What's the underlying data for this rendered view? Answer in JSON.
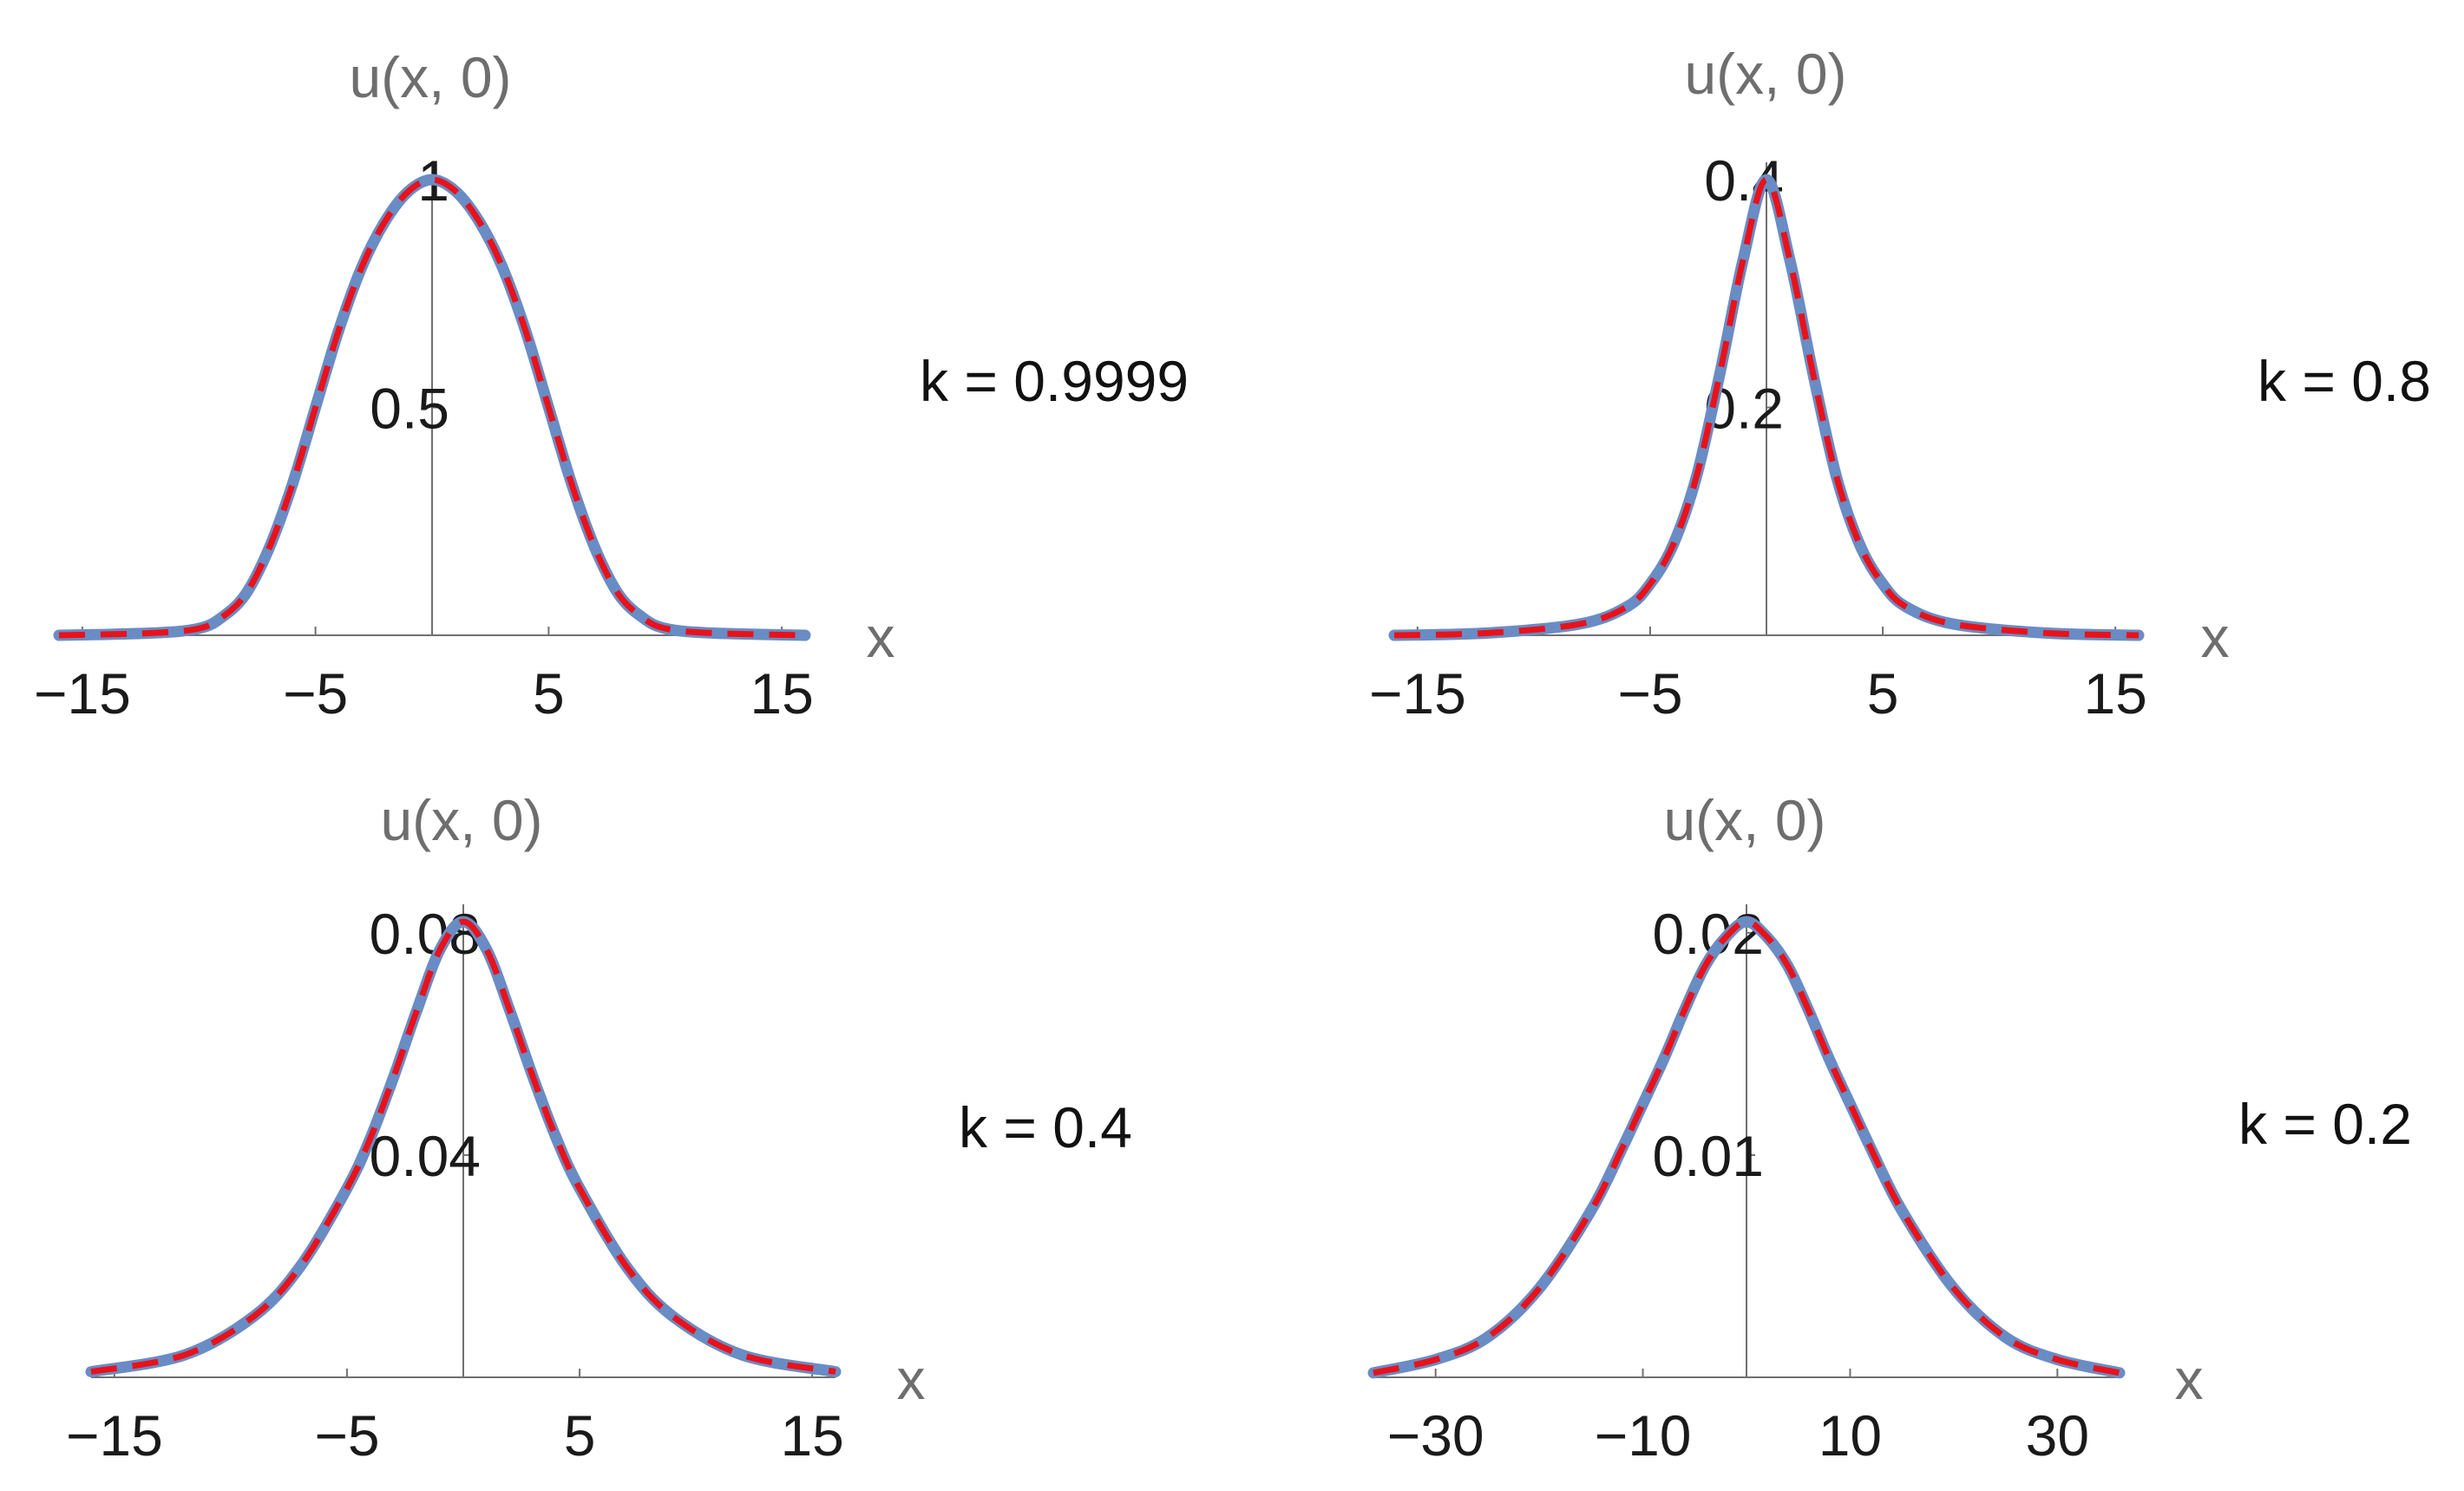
{
  "colors": {
    "solid_curve": "#6a8cc4",
    "dashed_curve": "#e8121b",
    "axis": "#707070",
    "axis_title": "#6e6e6e",
    "text": "#1a1a1a"
  },
  "chart_data": [
    {
      "type": "line",
      "ylabel": "u(x, 0)",
      "xlabel": "x",
      "annotation": "k = 0.9999",
      "xlim": [
        -16,
        16
      ],
      "ylim": [
        0,
        1
      ],
      "xticks": [
        -15,
        -5,
        5,
        15
      ],
      "xtick_labels": [
        "−15",
        "−5",
        "5",
        "15"
      ],
      "yticks": [
        0.5,
        1
      ],
      "ytick_labels": [
        "0.5",
        "1"
      ],
      "x": [
        -16,
        -12,
        -10,
        -9,
        -8,
        -7,
        -6,
        -5,
        -4,
        -3,
        -2,
        -1,
        0,
        1,
        2,
        3,
        4,
        5,
        6,
        7,
        8,
        9,
        10,
        12,
        16
      ],
      "y": [
        0.0,
        0.005,
        0.015,
        0.04,
        0.09,
        0.19,
        0.33,
        0.5,
        0.67,
        0.81,
        0.91,
        0.975,
        1.0,
        0.975,
        0.91,
        0.81,
        0.67,
        0.5,
        0.33,
        0.19,
        0.09,
        0.04,
        0.015,
        0.005,
        0.0
      ],
      "series": [
        {
          "style": "solid"
        },
        {
          "style": "dashed"
        }
      ]
    },
    {
      "type": "line",
      "ylabel": "u(x, 0)",
      "xlabel": "x",
      "annotation": "k = 0.8",
      "xlim": [
        -16,
        16
      ],
      "ylim": [
        0,
        0.4
      ],
      "xticks": [
        -15,
        -5,
        5,
        15
      ],
      "xtick_labels": [
        "−15",
        "−5",
        "5",
        "15"
      ],
      "yticks": [
        0.2,
        0.4
      ],
      "ytick_labels": [
        "0.2",
        "0.4"
      ],
      "x": [
        -16,
        -12,
        -8,
        -6,
        -5,
        -4,
        -3,
        -2,
        -1,
        0,
        1,
        2,
        3,
        4,
        5,
        6,
        8,
        12,
        16
      ],
      "y": [
        0.0,
        0.002,
        0.01,
        0.025,
        0.045,
        0.08,
        0.14,
        0.23,
        0.33,
        0.4,
        0.33,
        0.23,
        0.14,
        0.08,
        0.045,
        0.025,
        0.01,
        0.002,
        0.0
      ],
      "series": [
        {
          "style": "solid"
        },
        {
          "style": "dashed"
        }
      ]
    },
    {
      "type": "line",
      "ylabel": "u(x, 0)",
      "xlabel": "x",
      "annotation": "k = 0.4",
      "xlim": [
        -16,
        16
      ],
      "ylim": [
        0,
        0.082
      ],
      "xticks": [
        -15,
        -5,
        5,
        15
      ],
      "xtick_labels": [
        "−15",
        "−5",
        "5",
        "15"
      ],
      "yticks": [
        0.04,
        0.08
      ],
      "ytick_labels": [
        "0.04",
        "0.08"
      ],
      "x": [
        -16,
        -12,
        -9,
        -7,
        -5,
        -4,
        -3,
        -2,
        -1,
        0,
        1,
        2,
        3,
        4,
        5,
        7,
        9,
        12,
        16
      ],
      "y": [
        0.001,
        0.004,
        0.011,
        0.02,
        0.034,
        0.043,
        0.054,
        0.066,
        0.077,
        0.082,
        0.077,
        0.066,
        0.054,
        0.043,
        0.034,
        0.02,
        0.011,
        0.004,
        0.001
      ],
      "series": [
        {
          "style": "solid"
        },
        {
          "style": "dashed"
        }
      ]
    },
    {
      "type": "line",
      "ylabel": "u(x, 0)",
      "xlabel": "x",
      "annotation": "k = 0.2",
      "xlim": [
        -36,
        36
      ],
      "ylim": [
        0,
        0.0205
      ],
      "xticks": [
        -30,
        -10,
        10,
        30
      ],
      "xtick_labels": [
        "−30",
        "−10",
        "10",
        "30"
      ],
      "yticks": [
        0.01,
        0.02
      ],
      "ytick_labels": [
        "0.01",
        "0.02"
      ],
      "x": [
        -36,
        -30,
        -25,
        -20,
        -15,
        -12,
        -10,
        -8,
        -6,
        -4,
        -2,
        0,
        2,
        4,
        6,
        8,
        10,
        12,
        15,
        20,
        25,
        30,
        36
      ],
      "y": [
        0.0002,
        0.0008,
        0.0018,
        0.004,
        0.0075,
        0.0103,
        0.0123,
        0.0143,
        0.0165,
        0.0185,
        0.0198,
        0.0205,
        0.0198,
        0.0185,
        0.0165,
        0.0143,
        0.0123,
        0.0103,
        0.0075,
        0.004,
        0.0018,
        0.0008,
        0.0002
      ],
      "series": [
        {
          "style": "solid"
        },
        {
          "style": "dashed"
        }
      ]
    }
  ]
}
